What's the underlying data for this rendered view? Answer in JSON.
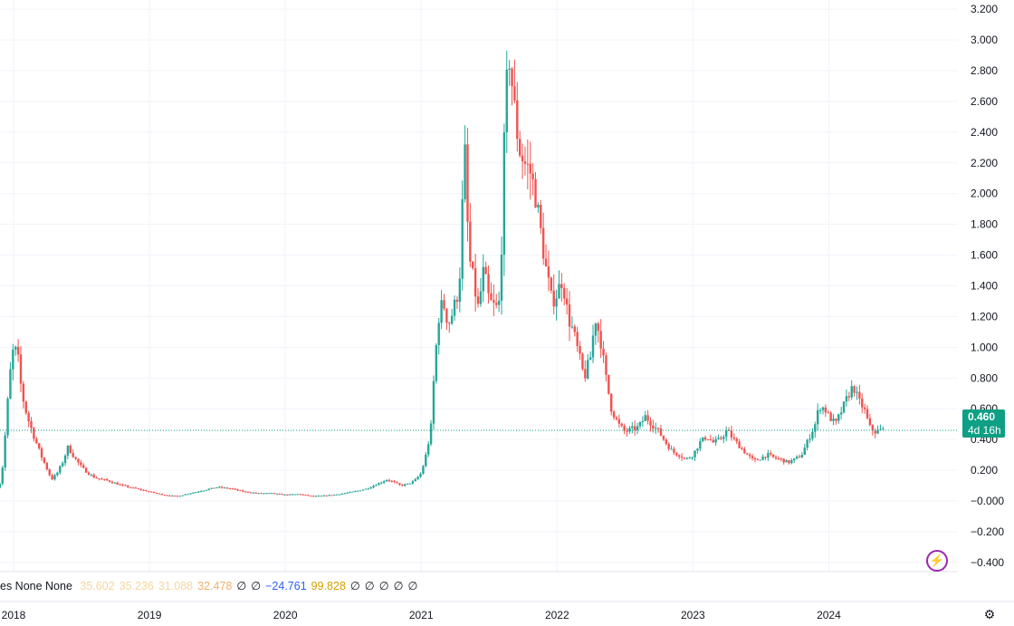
{
  "chart_data": {
    "type": "candlestick",
    "y_ticks": [
      "3.200",
      "3.000",
      "2.800",
      "2.600",
      "2.400",
      "2.200",
      "2.000",
      "1.800",
      "1.600",
      "1.400",
      "1.200",
      "1.000",
      "0.800",
      "0.600",
      "0.400",
      "0.200",
      "−0.000",
      "−0.200",
      "−0.400"
    ],
    "ylim": [
      -0.46,
      3.26
    ],
    "x_ticks": [
      "2018",
      "2019",
      "2020",
      "2021",
      "2022",
      "2023",
      "2024"
    ],
    "x_tick_years": [
      2018,
      2019,
      2020,
      2021,
      2022,
      2023,
      2024
    ],
    "xlim": [
      2017.9,
      2024.95
    ],
    "grid": true,
    "current_price": 0.46,
    "price_label": "0.460",
    "countdown_label": "4d 16h",
    "up_color": "#26a69a",
    "down_color": "#ef5350",
    "price_line_color": "#0e9f84",
    "series_close": [
      [
        2017.88,
        0.09
      ],
      [
        2017.91,
        0.13
      ],
      [
        2017.94,
        0.45
      ],
      [
        2017.97,
        0.8
      ],
      [
        2018.0,
        1.0
      ],
      [
        2018.03,
        0.95
      ],
      [
        2018.06,
        0.7
      ],
      [
        2018.1,
        0.55
      ],
      [
        2018.15,
        0.42
      ],
      [
        2018.2,
        0.3
      ],
      [
        2018.25,
        0.2
      ],
      [
        2018.28,
        0.14
      ],
      [
        2018.32,
        0.18
      ],
      [
        2018.36,
        0.25
      ],
      [
        2018.4,
        0.35
      ],
      [
        2018.45,
        0.28
      ],
      [
        2018.5,
        0.22
      ],
      [
        2018.55,
        0.18
      ],
      [
        2018.6,
        0.15
      ],
      [
        2018.7,
        0.13
      ],
      [
        2018.8,
        0.1
      ],
      [
        2018.9,
        0.08
      ],
      [
        2019.0,
        0.06
      ],
      [
        2019.1,
        0.04
      ],
      [
        2019.2,
        0.03
      ],
      [
        2019.3,
        0.05
      ],
      [
        2019.4,
        0.07
      ],
      [
        2019.5,
        0.09
      ],
      [
        2019.6,
        0.08
      ],
      [
        2019.7,
        0.06
      ],
      [
        2019.8,
        0.05
      ],
      [
        2019.9,
        0.05
      ],
      [
        2020.0,
        0.04
      ],
      [
        2020.1,
        0.045
      ],
      [
        2020.2,
        0.03
      ],
      [
        2020.3,
        0.035
      ],
      [
        2020.4,
        0.045
      ],
      [
        2020.5,
        0.06
      ],
      [
        2020.6,
        0.08
      ],
      [
        2020.7,
        0.12
      ],
      [
        2020.75,
        0.14
      ],
      [
        2020.8,
        0.12
      ],
      [
        2020.85,
        0.1
      ],
      [
        2020.9,
        0.11
      ],
      [
        2020.95,
        0.13
      ],
      [
        2021.0,
        0.18
      ],
      [
        2021.03,
        0.28
      ],
      [
        2021.07,
        0.45
      ],
      [
        2021.1,
        0.9
      ],
      [
        2021.13,
        1.2
      ],
      [
        2021.16,
        1.3
      ],
      [
        2021.2,
        1.15
      ],
      [
        2021.24,
        1.25
      ],
      [
        2021.28,
        1.4
      ],
      [
        2021.32,
        2.3
      ],
      [
        2021.35,
        1.6
      ],
      [
        2021.38,
        1.45
      ],
      [
        2021.42,
        1.25
      ],
      [
        2021.46,
        1.5
      ],
      [
        2021.5,
        1.3
      ],
      [
        2021.55,
        1.25
      ],
      [
        2021.58,
        1.3
      ],
      [
        2021.62,
        2.6
      ],
      [
        2021.65,
        2.9
      ],
      [
        2021.68,
        2.6
      ],
      [
        2021.72,
        2.3
      ],
      [
        2021.76,
        2.2
      ],
      [
        2021.8,
        2.15
      ],
      [
        2021.84,
        2.0
      ],
      [
        2021.88,
        1.75
      ],
      [
        2021.92,
        1.5
      ],
      [
        2021.96,
        1.3
      ],
      [
        2022.0,
        1.35
      ],
      [
        2022.04,
        1.45
      ],
      [
        2022.08,
        1.2
      ],
      [
        2022.12,
        1.1
      ],
      [
        2022.16,
        0.95
      ],
      [
        2022.2,
        0.8
      ],
      [
        2022.25,
        0.95
      ],
      [
        2022.28,
        1.2
      ],
      [
        2022.32,
        1.05
      ],
      [
        2022.36,
        0.8
      ],
      [
        2022.4,
        0.6
      ],
      [
        2022.45,
        0.5
      ],
      [
        2022.5,
        0.45
      ],
      [
        2022.6,
        0.48
      ],
      [
        2022.65,
        0.55
      ],
      [
        2022.7,
        0.5
      ],
      [
        2022.75,
        0.45
      ],
      [
        2022.8,
        0.38
      ],
      [
        2022.85,
        0.32
      ],
      [
        2022.9,
        0.3
      ],
      [
        2022.95,
        0.27
      ],
      [
        2023.0,
        0.3
      ],
      [
        2023.05,
        0.38
      ],
      [
        2023.1,
        0.42
      ],
      [
        2023.15,
        0.38
      ],
      [
        2023.2,
        0.4
      ],
      [
        2023.25,
        0.46
      ],
      [
        2023.3,
        0.4
      ],
      [
        2023.35,
        0.35
      ],
      [
        2023.4,
        0.3
      ],
      [
        2023.45,
        0.26
      ],
      [
        2023.5,
        0.28
      ],
      [
        2023.55,
        0.3
      ],
      [
        2023.6,
        0.28
      ],
      [
        2023.65,
        0.27
      ],
      [
        2023.7,
        0.25
      ],
      [
        2023.75,
        0.27
      ],
      [
        2023.8,
        0.3
      ],
      [
        2023.85,
        0.4
      ],
      [
        2023.9,
        0.5
      ],
      [
        2023.93,
        0.62
      ],
      [
        2023.97,
        0.6
      ],
      [
        2024.0,
        0.55
      ],
      [
        2024.05,
        0.5
      ],
      [
        2024.1,
        0.6
      ],
      [
        2024.15,
        0.7
      ],
      [
        2024.18,
        0.75
      ],
      [
        2024.22,
        0.65
      ],
      [
        2024.26,
        0.6
      ],
      [
        2024.3,
        0.48
      ],
      [
        2024.34,
        0.45
      ],
      [
        2024.38,
        0.46
      ],
      [
        2024.4,
        0.46
      ]
    ]
  },
  "legend": {
    "prefix": "es None None",
    "values": [
      {
        "text": "35.602",
        "color": "#f5d5a0"
      },
      {
        "text": "35.236",
        "color": "#f5d5a0"
      },
      {
        "text": "31.088",
        "color": "#f5d5a0"
      },
      {
        "text": "32.478",
        "color": "#f0b070"
      },
      {
        "text": "∅",
        "color": "#131722"
      },
      {
        "text": "∅",
        "color": "#131722"
      },
      {
        "text": "−24.761",
        "color": "#2962ff"
      },
      {
        "text": "99.828",
        "color": "#d4a000"
      },
      {
        "text": "∅",
        "color": "#131722"
      },
      {
        "text": "∅",
        "color": "#131722"
      },
      {
        "text": "∅",
        "color": "#131722"
      },
      {
        "text": "∅",
        "color": "#131722"
      },
      {
        "text": "∅",
        "color": "#131722"
      }
    ]
  },
  "icons": {
    "lightning": "lightning-icon",
    "settings": "settings-gear-icon"
  },
  "glyphs": {
    "lightning": "⚡",
    "settings": "⚙"
  }
}
